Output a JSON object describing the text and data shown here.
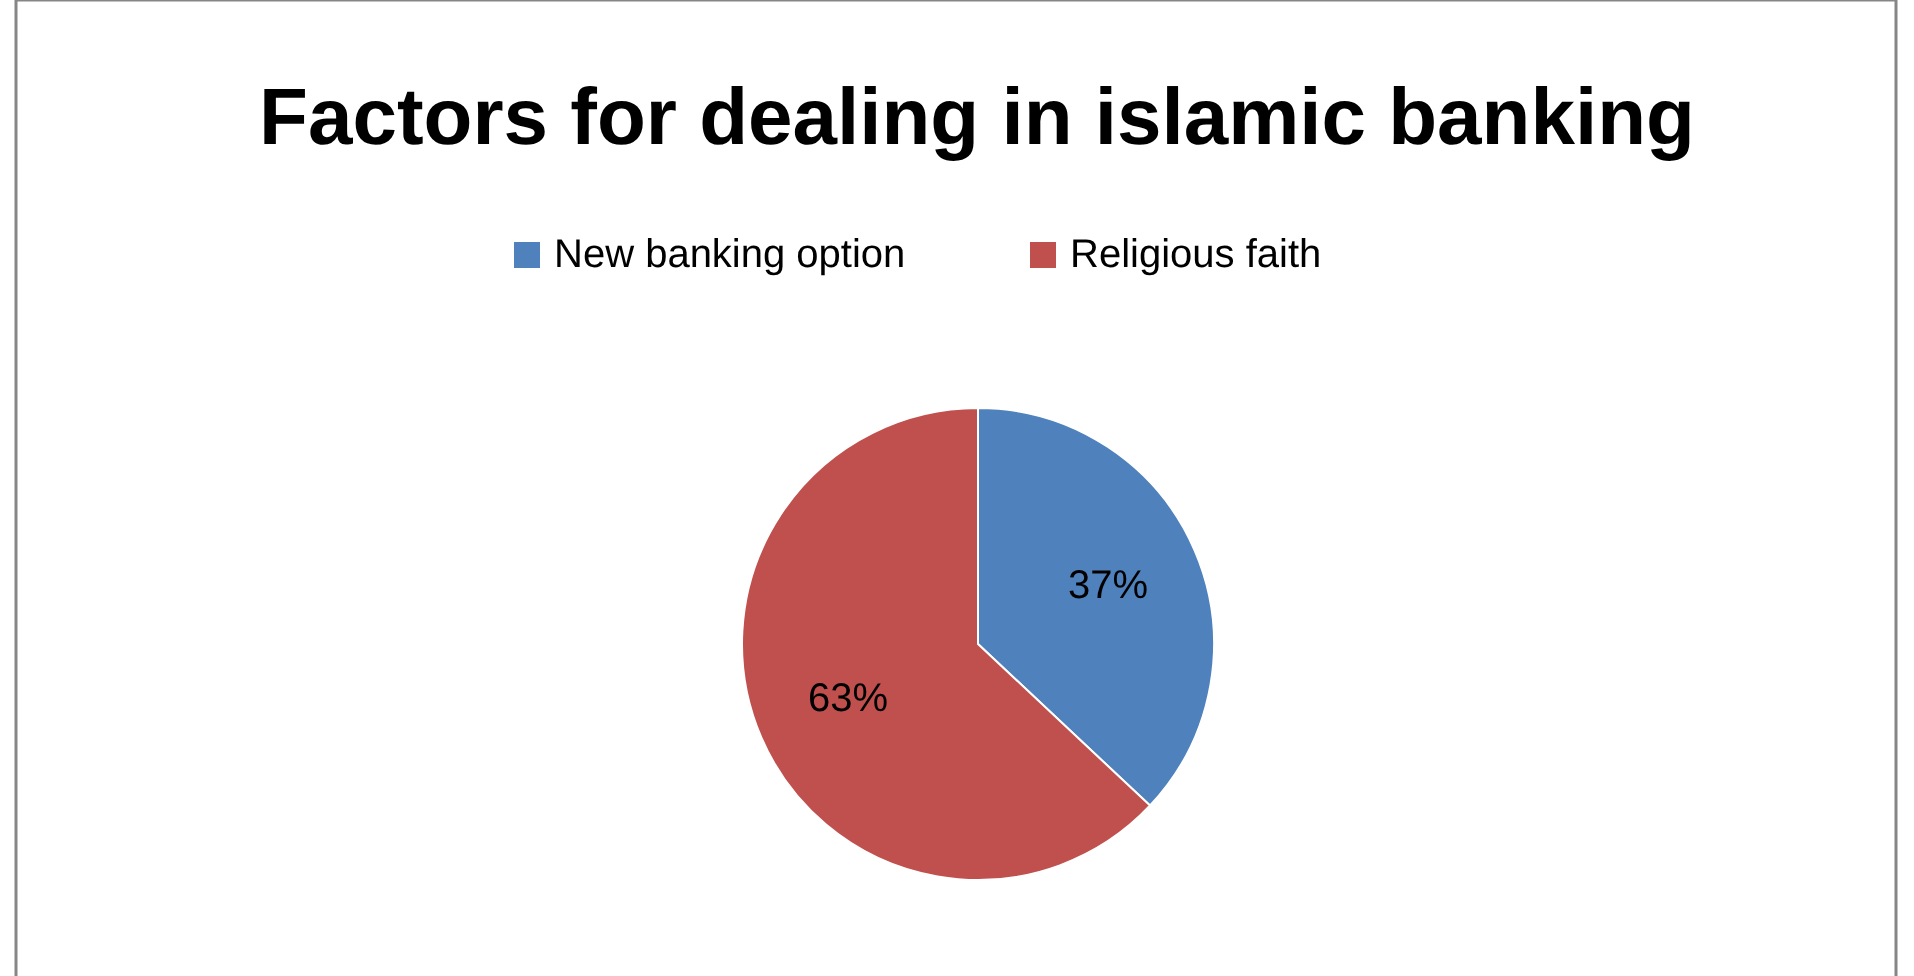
{
  "chart_data": {
    "type": "pie",
    "title": "Factors for dealing in islamic banking",
    "categories": [
      "New banking option",
      "Religious faith"
    ],
    "values": [
      37,
      63
    ],
    "colors": [
      "#4f81bd",
      "#c0504d"
    ],
    "value_labels": [
      "37%",
      "63%"
    ],
    "legend": "top"
  }
}
